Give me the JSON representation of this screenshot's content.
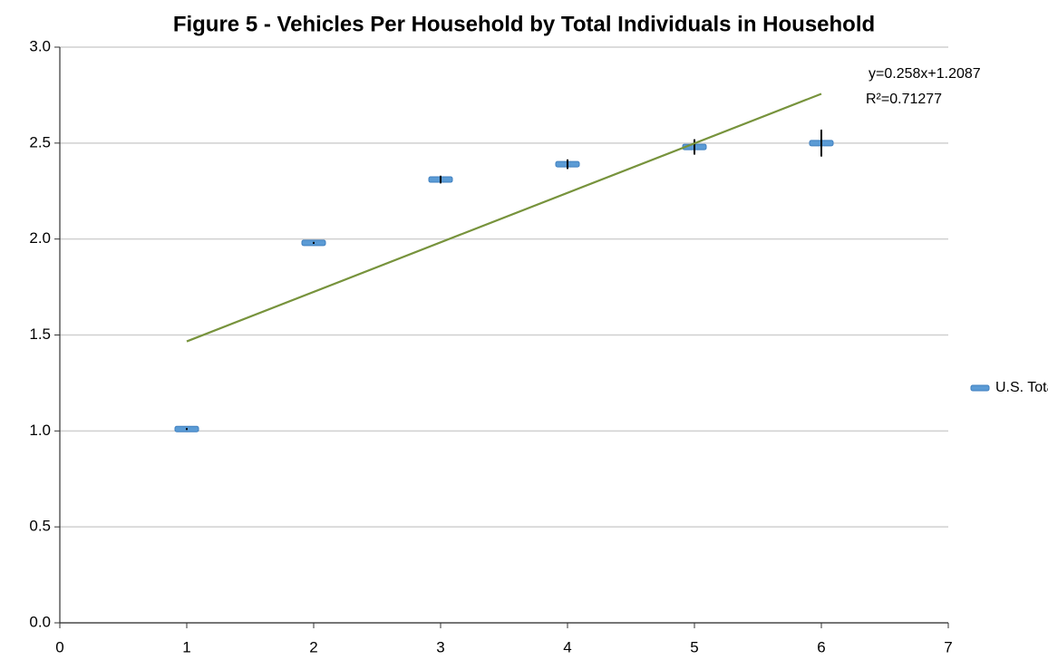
{
  "chart_data": {
    "type": "scatter",
    "title": "Figure 5 - Vehicles Per Household by Total Individuals in Household",
    "x": [
      1,
      2,
      3,
      4,
      5,
      6
    ],
    "series": [
      {
        "name": "U.S. Total*",
        "color": "#5b9bd5",
        "values": [
          1.01,
          1.98,
          2.31,
          2.39,
          2.48,
          2.5
        ],
        "errors": [
          0.005,
          0.005,
          0.02,
          0.025,
          0.04,
          0.07
        ]
      }
    ],
    "trendline": {
      "slope": 0.258,
      "intercept": 1.2087,
      "color": "#77933c",
      "equation": "y=0.258x+1.2087",
      "r2_label": "R²=0.71277"
    },
    "xlim": [
      0,
      7
    ],
    "xticks": [
      0,
      1,
      2,
      3,
      4,
      5,
      6,
      7
    ],
    "ylim": [
      0,
      3
    ],
    "yticks": [
      {
        "value": 0,
        "label": "0.0"
      },
      {
        "value": 0.5,
        "label": "0.5"
      },
      {
        "value": 1,
        "label": "1.0"
      },
      {
        "value": 1.5,
        "label": "1.5"
      },
      {
        "value": 2,
        "label": "2.0"
      },
      {
        "value": 2.5,
        "label": "2.5"
      },
      {
        "value": 3,
        "label": "3.0"
      }
    ],
    "grid": true,
    "legend": "right"
  }
}
